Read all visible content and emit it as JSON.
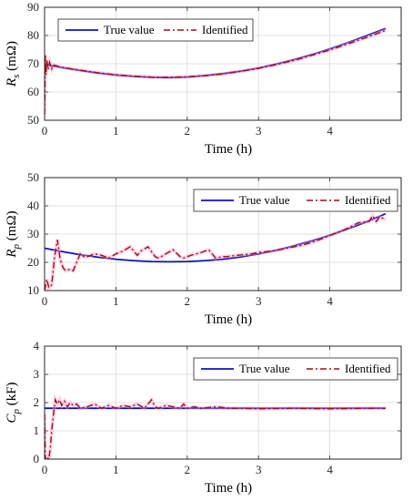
{
  "colors": {
    "true_value": "#1111bb",
    "identified": "#991111",
    "identified_bg": "#ff99cc",
    "grid": "#d9d9d9",
    "axes": "#262626"
  },
  "chart_data": [
    {
      "type": "line",
      "xlabel": "Time (h)",
      "ylabel_main": "R",
      "ylabel_sub": "s",
      "ylabel_unit": " (mΩ)",
      "xlim": [
        0,
        5
      ],
      "ylim": [
        50,
        90
      ],
      "xticks": [
        "0",
        "1",
        "2",
        "3",
        "4"
      ],
      "yticks": [
        "50",
        "60",
        "70",
        "80",
        "90"
      ],
      "grid": true,
      "legend_position": "top-left",
      "series": [
        {
          "name": "True value",
          "style": "solid",
          "x": [
            0,
            0.25,
            0.5,
            0.75,
            1,
            1.25,
            1.5,
            1.75,
            2,
            2.25,
            2.5,
            2.75,
            3,
            3.25,
            3.5,
            3.75,
            4,
            4.25,
            4.5,
            4.78
          ],
          "y": [
            69.7,
            68.6,
            67.6,
            66.7,
            66.0,
            65.5,
            65.2,
            65.1,
            65.3,
            65.8,
            66.5,
            67.4,
            68.5,
            69.9,
            71.5,
            73.3,
            75.3,
            77.5,
            79.8,
            82.5
          ]
        },
        {
          "name": "Identified",
          "style": "dashdot",
          "x": [
            0,
            0.01,
            0.02,
            0.03,
            0.05,
            0.07,
            0.1,
            0.12,
            0.15,
            0.25,
            0.5,
            0.75,
            1,
            1.25,
            1.5,
            1.75,
            2,
            2.25,
            2.5,
            2.75,
            3,
            3.25,
            3.5,
            3.75,
            4,
            4.25,
            4.5,
            4.78
          ],
          "y": [
            52,
            73,
            66,
            71.5,
            68,
            70.5,
            68.2,
            69.6,
            69.4,
            68.7,
            67.7,
            66.8,
            66.1,
            65.6,
            65.3,
            65.2,
            65.4,
            65.8,
            66.4,
            67.3,
            68.4,
            69.7,
            71.2,
            73.0,
            74.9,
            77.0,
            79.2,
            81.8
          ]
        }
      ]
    },
    {
      "type": "line",
      "xlabel": "Time (h)",
      "ylabel_main": "R",
      "ylabel_sub": "p",
      "ylabel_unit": " (mΩ)",
      "xlim": [
        0,
        5
      ],
      "ylim": [
        10,
        50
      ],
      "xticks": [
        "0",
        "1",
        "2",
        "3",
        "4"
      ],
      "yticks": [
        "10",
        "20",
        "30",
        "40",
        "50"
      ],
      "grid": true,
      "legend_position": "top-right",
      "series": [
        {
          "name": "True value",
          "style": "solid",
          "x": [
            0,
            0.25,
            0.5,
            0.75,
            1,
            1.25,
            1.5,
            1.75,
            2,
            2.25,
            2.5,
            2.75,
            3,
            3.25,
            3.5,
            3.75,
            4,
            4.25,
            4.5,
            4.78
          ],
          "y": [
            25.0,
            23.8,
            22.7,
            21.8,
            21.1,
            20.6,
            20.3,
            20.2,
            20.3,
            20.6,
            21.1,
            21.9,
            23.0,
            24.3,
            25.9,
            27.6,
            29.6,
            31.8,
            34.2,
            37.2
          ]
        },
        {
          "name": "Identified",
          "style": "dashdot",
          "x": [
            0,
            0.03,
            0.06,
            0.1,
            0.14,
            0.18,
            0.22,
            0.26,
            0.3,
            0.35,
            0.4,
            0.45,
            0.5,
            0.55,
            0.6,
            0.7,
            0.8,
            0.9,
            1.0,
            1.1,
            1.2,
            1.3,
            1.35,
            1.45,
            1.55,
            1.6,
            1.7,
            1.8,
            1.9,
            1.95,
            2.05,
            2.2,
            2.3,
            2.4,
            2.5,
            2.55,
            2.7,
            2.9,
            3.0,
            3.2,
            3.4,
            3.6,
            3.8,
            4.0,
            4.2,
            4.4,
            4.55,
            4.6,
            4.65,
            4.7,
            4.78
          ],
          "y": [
            10,
            14,
            11,
            12,
            22,
            28,
            21,
            18,
            17,
            17.5,
            17,
            20,
            23,
            22,
            22,
            23,
            22.5,
            21.5,
            23,
            24,
            25.5,
            22.5,
            24,
            25.5,
            22,
            21.5,
            23,
            24.5,
            22,
            21.5,
            22.5,
            23.5,
            24.5,
            21.5,
            22,
            22,
            22.5,
            23,
            23.5,
            24,
            25,
            26,
            27.5,
            29.5,
            31.5,
            34,
            34.5,
            36.5,
            34.5,
            36.2,
            35
          ]
        }
      ]
    },
    {
      "type": "line",
      "xlabel": "Time (h)",
      "ylabel_main": "C",
      "ylabel_sub": "p",
      "ylabel_unit": " (kF)",
      "xlim": [
        0,
        5
      ],
      "ylim": [
        0,
        4
      ],
      "xticks": [
        "0",
        "1",
        "2",
        "3",
        "4"
      ],
      "yticks": [
        "0",
        "1",
        "2",
        "3",
        "4"
      ],
      "grid": true,
      "legend_position": "top-right",
      "series": [
        {
          "name": "True value",
          "style": "solid",
          "x": [
            0,
            4.78
          ],
          "y": [
            1.8,
            1.8
          ]
        },
        {
          "name": "Identified",
          "style": "dashdot",
          "x": [
            0,
            0.01,
            0.02,
            0.04,
            0.06,
            0.08,
            0.1,
            0.13,
            0.15,
            0.18,
            0.21,
            0.24,
            0.28,
            0.32,
            0.36,
            0.4,
            0.45,
            0.5,
            0.6,
            0.7,
            0.8,
            0.9,
            1.0,
            1.1,
            1.2,
            1.3,
            1.4,
            1.5,
            1.55,
            1.6,
            1.7,
            1.8,
            1.9,
            1.95,
            2.0,
            2.1,
            2.2,
            2.4,
            2.6,
            2.8,
            3.0,
            3.5,
            4.0,
            4.5,
            4.78
          ],
          "y": [
            1.6,
            0,
            0.1,
            0.05,
            0,
            0.4,
            1.0,
            1.7,
            2.1,
            1.95,
            2.1,
            1.9,
            2.05,
            1.85,
            2.0,
            1.9,
            1.95,
            1.8,
            1.85,
            1.95,
            1.8,
            1.9,
            1.8,
            1.9,
            1.85,
            1.95,
            1.8,
            2.1,
            1.85,
            1.8,
            1.9,
            1.85,
            1.8,
            1.95,
            1.8,
            1.85,
            1.8,
            1.85,
            1.8,
            1.8,
            1.78,
            1.8,
            1.78,
            1.8,
            1.8
          ]
        }
      ]
    }
  ]
}
